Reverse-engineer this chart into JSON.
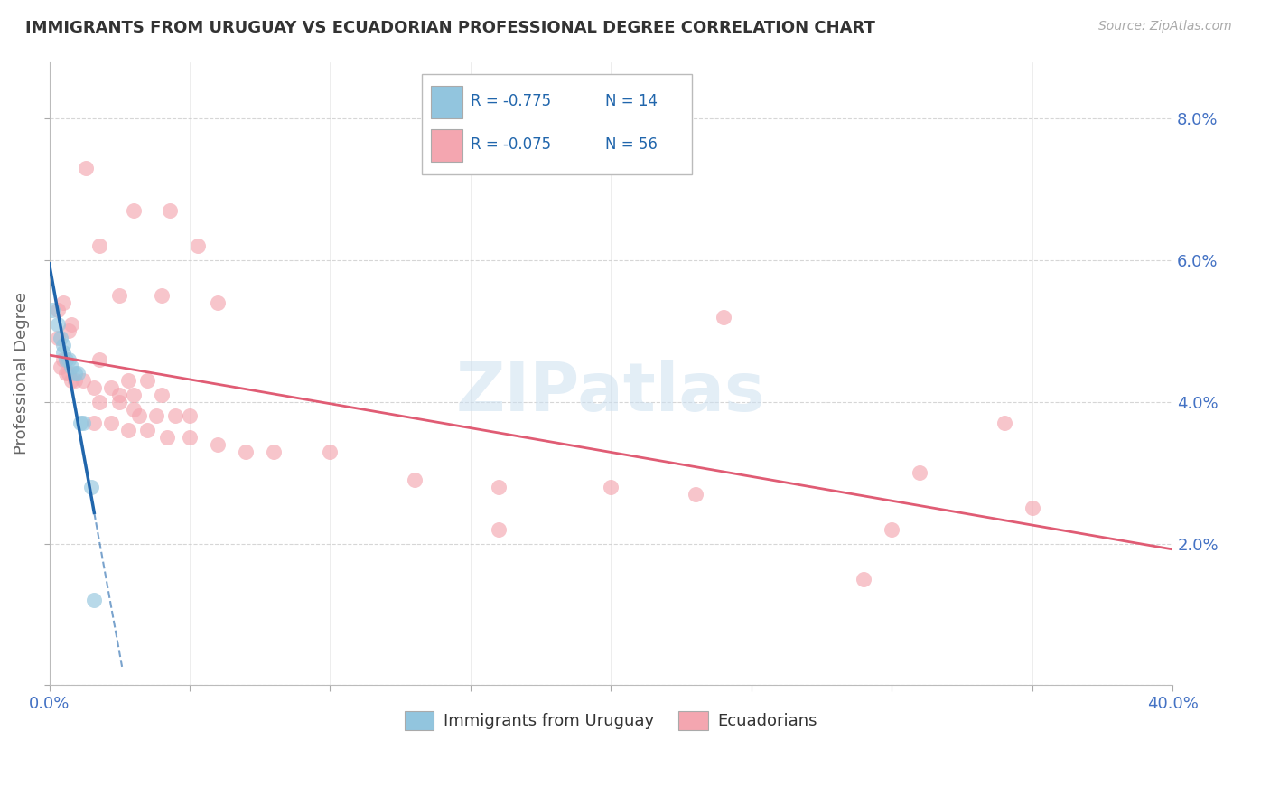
{
  "title": "IMMIGRANTS FROM URUGUAY VS ECUADORIAN PROFESSIONAL DEGREE CORRELATION CHART",
  "source_text": "Source: ZipAtlas.com",
  "ylabel": "Professional Degree",
  "xlim": [
    0.0,
    0.4
  ],
  "ylim": [
    0.0,
    0.088
  ],
  "x_ticks": [
    0.0,
    0.05,
    0.1,
    0.15,
    0.2,
    0.25,
    0.3,
    0.35,
    0.4
  ],
  "x_tick_labels": [
    "0.0%",
    "",
    "",
    "",
    "",
    "",
    "",
    "",
    "40.0%"
  ],
  "y_ticks_right": [
    0.0,
    0.02,
    0.04,
    0.06,
    0.08
  ],
  "y_tick_labels_right": [
    "",
    "2.0%",
    "4.0%",
    "6.0%",
    "8.0%"
  ],
  "legend_r1": "R = -0.775",
  "legend_n1": "N = 14",
  "legend_r2": "R = -0.075",
  "legend_n2": "N = 56",
  "watermark": "ZIPatlas",
  "scatter_uruguay": [
    [
      0.001,
      0.053
    ],
    [
      0.003,
      0.051
    ],
    [
      0.004,
      0.049
    ],
    [
      0.005,
      0.048
    ],
    [
      0.005,
      0.047
    ],
    [
      0.006,
      0.046
    ],
    [
      0.007,
      0.046
    ],
    [
      0.008,
      0.045
    ],
    [
      0.009,
      0.044
    ],
    [
      0.01,
      0.044
    ],
    [
      0.011,
      0.037
    ],
    [
      0.012,
      0.037
    ],
    [
      0.015,
      0.028
    ],
    [
      0.016,
      0.012
    ]
  ],
  "scatter_ecuador": [
    [
      0.013,
      0.073
    ],
    [
      0.03,
      0.067
    ],
    [
      0.043,
      0.067
    ],
    [
      0.053,
      0.062
    ],
    [
      0.018,
      0.062
    ],
    [
      0.025,
      0.055
    ],
    [
      0.04,
      0.055
    ],
    [
      0.06,
      0.054
    ],
    [
      0.005,
      0.054
    ],
    [
      0.003,
      0.053
    ],
    [
      0.008,
      0.051
    ],
    [
      0.007,
      0.05
    ],
    [
      0.003,
      0.049
    ],
    [
      0.018,
      0.046
    ],
    [
      0.005,
      0.046
    ],
    [
      0.004,
      0.045
    ],
    [
      0.006,
      0.044
    ],
    [
      0.007,
      0.044
    ],
    [
      0.008,
      0.043
    ],
    [
      0.009,
      0.043
    ],
    [
      0.012,
      0.043
    ],
    [
      0.016,
      0.042
    ],
    [
      0.022,
      0.042
    ],
    [
      0.025,
      0.041
    ],
    [
      0.03,
      0.041
    ],
    [
      0.04,
      0.041
    ],
    [
      0.028,
      0.043
    ],
    [
      0.035,
      0.043
    ],
    [
      0.018,
      0.04
    ],
    [
      0.025,
      0.04
    ],
    [
      0.03,
      0.039
    ],
    [
      0.032,
      0.038
    ],
    [
      0.038,
      0.038
    ],
    [
      0.045,
      0.038
    ],
    [
      0.05,
      0.038
    ],
    [
      0.016,
      0.037
    ],
    [
      0.022,
      0.037
    ],
    [
      0.028,
      0.036
    ],
    [
      0.035,
      0.036
    ],
    [
      0.042,
      0.035
    ],
    [
      0.05,
      0.035
    ],
    [
      0.06,
      0.034
    ],
    [
      0.07,
      0.033
    ],
    [
      0.08,
      0.033
    ],
    [
      0.1,
      0.033
    ],
    [
      0.13,
      0.029
    ],
    [
      0.16,
      0.028
    ],
    [
      0.2,
      0.028
    ],
    [
      0.23,
      0.027
    ],
    [
      0.16,
      0.022
    ],
    [
      0.3,
      0.022
    ],
    [
      0.31,
      0.03
    ],
    [
      0.34,
      0.037
    ],
    [
      0.24,
      0.052
    ],
    [
      0.29,
      0.015
    ],
    [
      0.35,
      0.025
    ]
  ],
  "color_uruguay": "#92c5de",
  "color_ecuador": "#f4a6b0",
  "line_color_uruguay": "#2166ac",
  "line_color_ecuador": "#e05c74",
  "background_color": "#ffffff",
  "grid_color": "#cccccc",
  "tick_color": "#4472c4",
  "ylabel_color": "#666666"
}
